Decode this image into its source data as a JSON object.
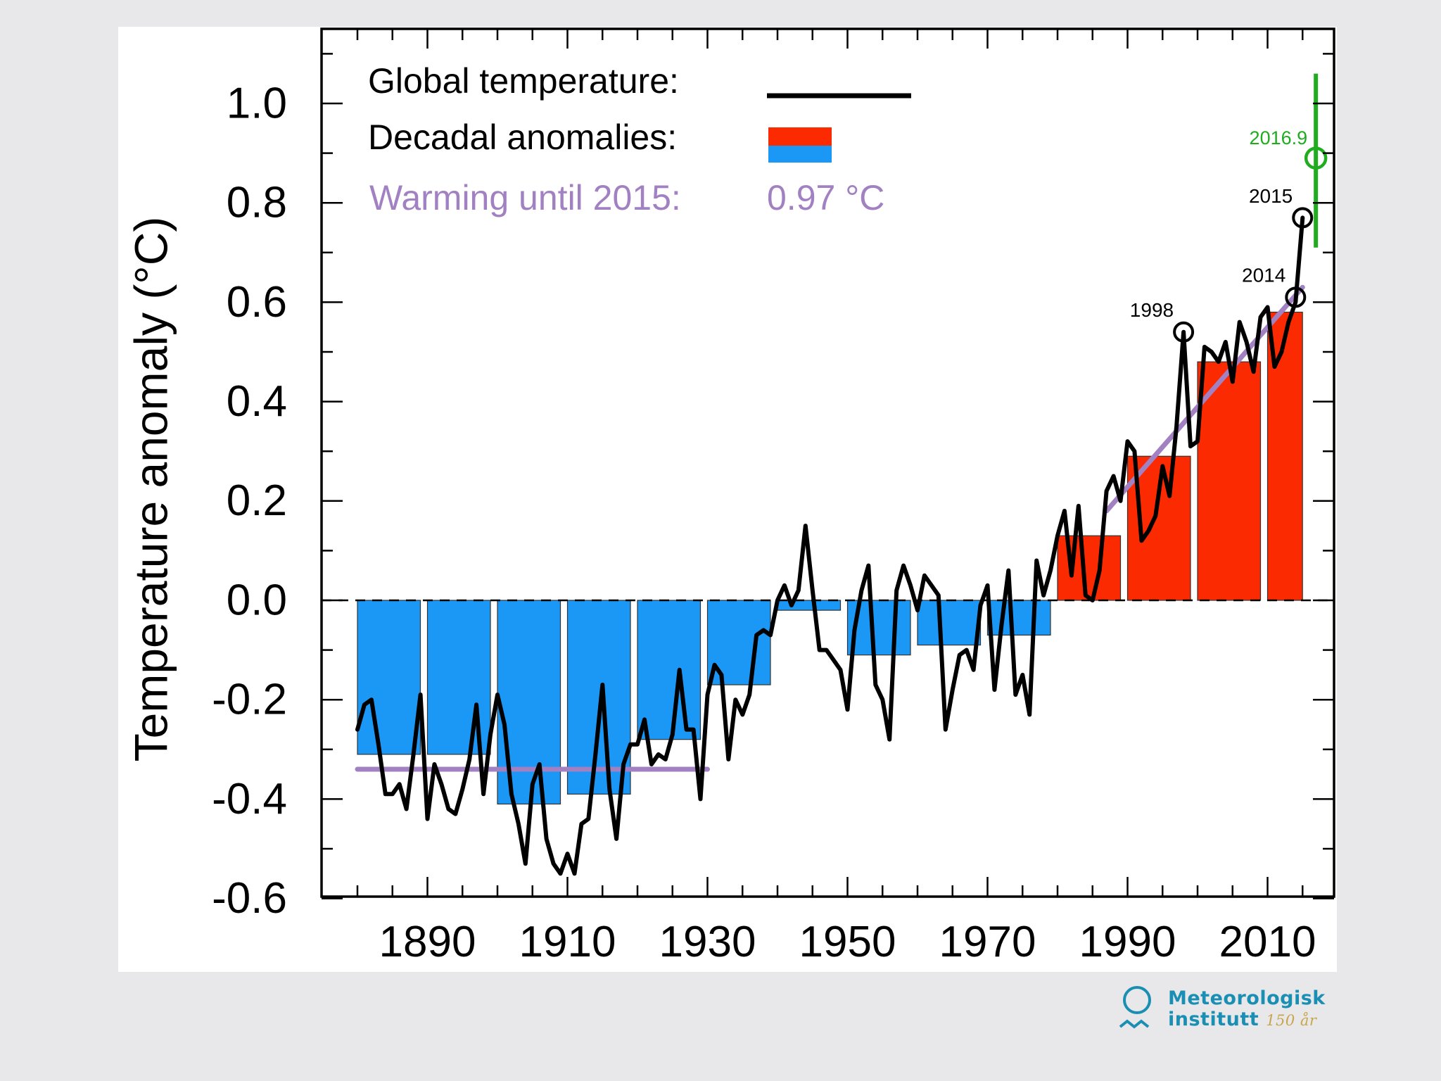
{
  "chart_data": {
    "type": "bar+line",
    "ylabel": "Temperature anomaly (°C)",
    "xlabel": "",
    "xlim": [
      1875,
      2020
    ],
    "ylim": [
      -0.6,
      1.1
    ],
    "x_ticks": [
      1890,
      1910,
      1930,
      1950,
      1970,
      1990,
      2010
    ],
    "y_ticks": [
      1.0,
      0.8,
      0.6,
      0.4,
      0.2,
      0.0,
      -0.2,
      -0.4,
      -0.6
    ],
    "y_tick_labels": [
      "1.0",
      "0.8",
      "0.6",
      "0.4",
      "0.2",
      "0.0",
      "-0.2",
      "-0.4",
      "-0.6"
    ],
    "legend": {
      "global_label": "Global temperature:",
      "decadal_label": "Decadal anomalies:",
      "warming_label": "Warming until 2015:",
      "warming_value": "0.97 °C"
    },
    "decadal_anomalies": [
      {
        "start": 1880,
        "end": 1889,
        "value": -0.31
      },
      {
        "start": 1890,
        "end": 1899,
        "value": -0.31
      },
      {
        "start": 1900,
        "end": 1909,
        "value": -0.41
      },
      {
        "start": 1910,
        "end": 1919,
        "value": -0.39
      },
      {
        "start": 1920,
        "end": 1929,
        "value": -0.28
      },
      {
        "start": 1930,
        "end": 1939,
        "value": -0.17
      },
      {
        "start": 1940,
        "end": 1949,
        "value": -0.02
      },
      {
        "start": 1950,
        "end": 1959,
        "value": -0.11
      },
      {
        "start": 1960,
        "end": 1969,
        "value": -0.09
      },
      {
        "start": 1970,
        "end": 1979,
        "value": -0.07
      },
      {
        "start": 1980,
        "end": 1989,
        "value": 0.13
      },
      {
        "start": 1990,
        "end": 1999,
        "value": 0.29
      },
      {
        "start": 2000,
        "end": 2009,
        "value": 0.48
      },
      {
        "start": 2010,
        "end": 2015,
        "value": 0.58
      }
    ],
    "global_temperature": {
      "x": [
        1880,
        1881,
        1882,
        1883,
        1884,
        1885,
        1886,
        1887,
        1888,
        1889,
        1890,
        1891,
        1892,
        1893,
        1894,
        1895,
        1896,
        1897,
        1898,
        1899,
        1900,
        1901,
        1902,
        1903,
        1904,
        1905,
        1906,
        1907,
        1908,
        1909,
        1910,
        1911,
        1912,
        1913,
        1914,
        1915,
        1916,
        1917,
        1918,
        1919,
        1920,
        1921,
        1922,
        1923,
        1924,
        1925,
        1926,
        1927,
        1928,
        1929,
        1930,
        1931,
        1932,
        1933,
        1934,
        1935,
        1936,
        1937,
        1938,
        1939,
        1940,
        1941,
        1942,
        1943,
        1944,
        1945,
        1946,
        1947,
        1948,
        1949,
        1950,
        1951,
        1952,
        1953,
        1954,
        1955,
        1956,
        1957,
        1958,
        1959,
        1960,
        1961,
        1962,
        1963,
        1964,
        1965,
        1966,
        1967,
        1968,
        1969,
        1970,
        1971,
        1972,
        1973,
        1974,
        1975,
        1976,
        1977,
        1978,
        1979,
        1980,
        1981,
        1982,
        1983,
        1984,
        1985,
        1986,
        1987,
        1988,
        1989,
        1990,
        1991,
        1992,
        1993,
        1994,
        1995,
        1996,
        1997,
        1998,
        1999,
        2000,
        2001,
        2002,
        2003,
        2004,
        2005,
        2006,
        2007,
        2008,
        2009,
        2010,
        2011,
        2012,
        2013,
        2014,
        2015
      ],
      "y": [
        -0.26,
        -0.21,
        -0.2,
        -0.29,
        -0.39,
        -0.39,
        -0.37,
        -0.42,
        -0.31,
        -0.19,
        -0.44,
        -0.33,
        -0.37,
        -0.42,
        -0.43,
        -0.38,
        -0.32,
        -0.21,
        -0.39,
        -0.27,
        -0.19,
        -0.25,
        -0.39,
        -0.45,
        -0.53,
        -0.37,
        -0.33,
        -0.48,
        -0.53,
        -0.55,
        -0.51,
        -0.55,
        -0.45,
        -0.44,
        -0.31,
        -0.17,
        -0.38,
        -0.48,
        -0.33,
        -0.29,
        -0.29,
        -0.24,
        -0.33,
        -0.31,
        -0.32,
        -0.27,
        -0.14,
        -0.26,
        -0.26,
        -0.4,
        -0.19,
        -0.13,
        -0.15,
        -0.32,
        -0.2,
        -0.23,
        -0.19,
        -0.07,
        -0.06,
        -0.07,
        0.0,
        0.03,
        -0.01,
        0.02,
        0.15,
        0.02,
        -0.1,
        -0.1,
        -0.12,
        -0.14,
        -0.22,
        -0.06,
        0.02,
        0.07,
        -0.17,
        -0.2,
        -0.28,
        0.02,
        0.07,
        0.03,
        -0.02,
        0.05,
        0.03,
        0.01,
        -0.26,
        -0.18,
        -0.11,
        -0.1,
        -0.14,
        -0.01,
        0.03,
        -0.18,
        -0.05,
        0.06,
        -0.19,
        -0.15,
        -0.23,
        0.08,
        0.01,
        0.06,
        0.13,
        0.18,
        0.05,
        0.19,
        0.01,
        0.0,
        0.06,
        0.22,
        0.25,
        0.2,
        0.32,
        0.3,
        0.12,
        0.14,
        0.17,
        0.27,
        0.21,
        0.35,
        0.54,
        0.31,
        0.32,
        0.51,
        0.5,
        0.48,
        0.52,
        0.44,
        0.56,
        0.52,
        0.46,
        0.57,
        0.59,
        0.47,
        0.5,
        0.56,
        0.6,
        0.77
      ]
    },
    "trend_lines": [
      {
        "x": [
          1880,
          1930
        ],
        "y": [
          -0.34,
          -0.34
        ]
      },
      {
        "x": [
          1987,
          2015
        ],
        "y": [
          0.18,
          0.63
        ]
      }
    ],
    "annotations": [
      {
        "label": "1998",
        "x": 1998,
        "y": 0.54
      },
      {
        "label": "2014",
        "x": 2014,
        "y": 0.61
      },
      {
        "label": "2015",
        "x": 2015,
        "y": 0.77
      }
    ],
    "projection": {
      "label": "2016.9",
      "x": 2016.9,
      "y": 0.89,
      "low": 0.71,
      "high": 1.06
    },
    "colors": {
      "positive": "#fc2a00",
      "negative": "#1b97f5",
      "line": "#000000",
      "trend": "#a281c3",
      "projection": "#1fac1f",
      "warming_text": "#a281c3"
    }
  },
  "logo": {
    "name_line1": "Meteorologisk",
    "name_line2": "institutt",
    "tagline": "150 år"
  }
}
